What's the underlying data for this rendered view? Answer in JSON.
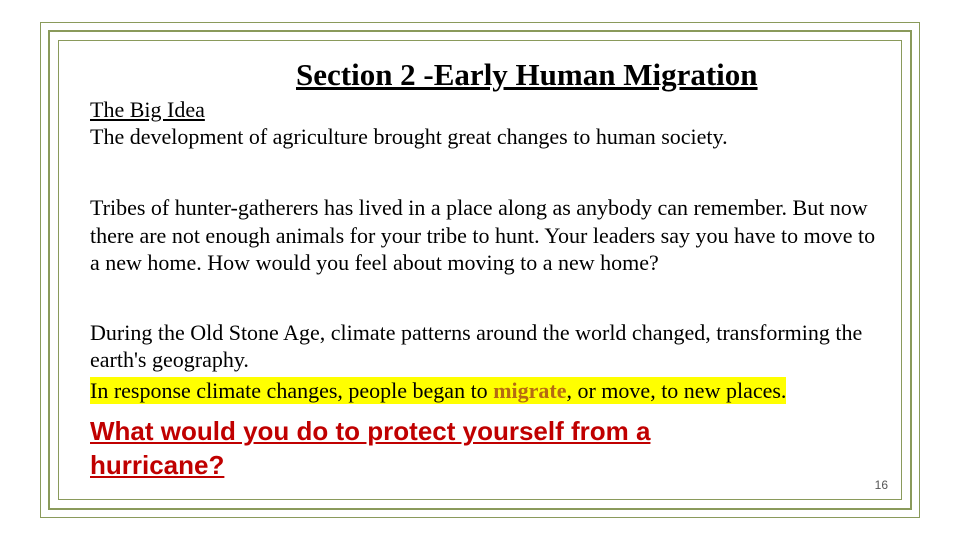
{
  "colors": {
    "border": "#8a9a5b",
    "highlight_bg": "#ffff00",
    "question_color": "#c00000",
    "migrate_color": "#b56a12",
    "text_color": "#000000",
    "background": "#ffffff"
  },
  "typography": {
    "title_fontsize": 31,
    "body_fontsize": 22,
    "question_fontsize": 26,
    "body_font": "Times New Roman",
    "question_font": "Arial"
  },
  "title": "Section 2 -Early Human Migration",
  "subtitle": "The Big Idea",
  "big_idea_text": "The development of agriculture brought great changes to human society.",
  "paragraph1": "Tribes of hunter-gatherers has lived in a place along as anybody can remember. But now there are not enough animals for your tribe to hunt. Your leaders say you have to move to a new home.  How would you feel about moving to a new home?",
  "paragraph2": "During the Old Stone Age, climate patterns around the world changed, transforming the earth's geography.",
  "highlight_pre": "In response climate changes, people began to ",
  "highlight_migrate": "migrate",
  "highlight_post": ", or move, to new places.",
  "question": "What would you do to protect yourself from a hurricane?",
  "page_number": "16"
}
